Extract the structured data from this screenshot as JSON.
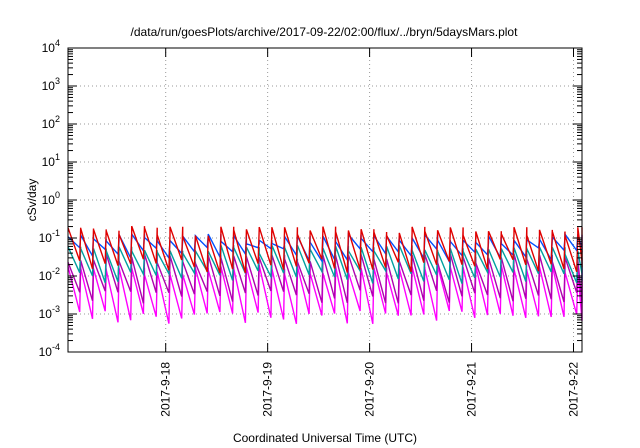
{
  "chart_data": {
    "type": "line",
    "title": "/data/run/goesPlots/archive/2017-09-22/02:00/flux/../bryn/5daysMars.plot",
    "xlabel": "Coordinated Universal Time (UTC)",
    "ylabel": "cSv/day",
    "yscale": "log",
    "ylim_exponents": [
      -4,
      4
    ],
    "y_ticks": [
      {
        "base": "10",
        "exp": "-4"
      },
      {
        "base": "10",
        "exp": "-3"
      },
      {
        "base": "10",
        "exp": "-2"
      },
      {
        "base": "10",
        "exp": "-1"
      },
      {
        "base": "10",
        "exp": "0"
      },
      {
        "base": "10",
        "exp": "1"
      },
      {
        "base": "10",
        "exp": "2"
      },
      {
        "base": "10",
        "exp": "3"
      },
      {
        "base": "10",
        "exp": "4"
      }
    ],
    "xlim": [
      "2017-09-17 01:00",
      "2017-09-22 02:00"
    ],
    "x_ticks": [
      {
        "label": "2017-9-18",
        "value": "2017-09-18"
      },
      {
        "label": "2017-9-19",
        "value": "2017-09-19"
      },
      {
        "label": "2017-9-20",
        "value": "2017-09-20"
      },
      {
        "label": "2017-9-21",
        "value": "2017-09-21"
      },
      {
        "label": "2017-9-22",
        "value": "2017-09-22"
      }
    ],
    "grid": true,
    "pattern_period_hours": 3,
    "series": [
      {
        "color": "#e00000",
        "peak": 0.16,
        "trough": 0.02
      },
      {
        "color": "#0050ff",
        "peak": 0.1,
        "trough": 0.04
      },
      {
        "color": "#00a0a0",
        "peak": 0.05,
        "trough": 0.01
      },
      {
        "color": "#b000b0",
        "peak": 0.03,
        "trough": 0.003
      },
      {
        "color": "#ff00ff",
        "peak": 0.015,
        "trough": 0.0009
      }
    ]
  }
}
